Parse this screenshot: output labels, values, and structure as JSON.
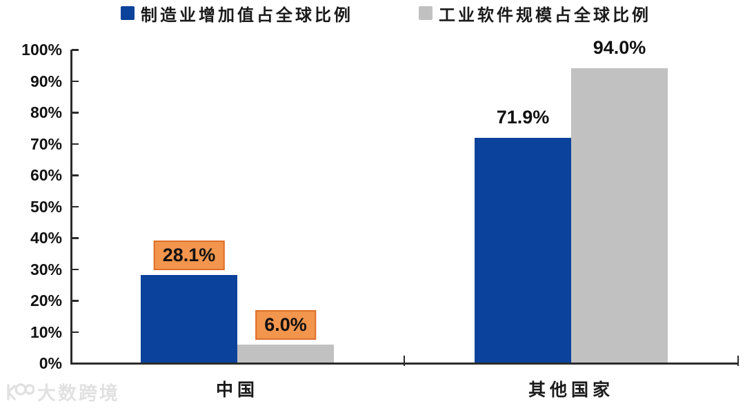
{
  "legend": {
    "items": [
      {
        "label": "制造业增加值占全球比例",
        "color": "#0B429B"
      },
      {
        "label": "工业软件规模占全球比例",
        "color": "#C1C1C1"
      }
    ]
  },
  "chart_data": {
    "type": "bar",
    "title": "",
    "categories": [
      "中国",
      "其他国家"
    ],
    "series": [
      {
        "name": "制造业增加值占全球比例",
        "color": "#0B429B",
        "values": [
          28.1,
          71.9
        ],
        "labels": [
          "28.1%",
          "71.9%"
        ]
      },
      {
        "name": "工业软件规模占全球比例",
        "color": "#C1C1C1",
        "values": [
          6.0,
          94.0
        ],
        "labels": [
          "6.0%",
          "94.0%"
        ]
      }
    ],
    "value_label_boxed_per_category": [
      true,
      false
    ],
    "value_label_box": {
      "fill": "#F2954D",
      "border": "#DD6F28",
      "text_color": "#111111"
    },
    "y_ticks": [
      "0%",
      "10%",
      "20%",
      "30%",
      "40%",
      "50%",
      "60%",
      "70%",
      "80%",
      "90%",
      "100%"
    ],
    "ylim": [
      0,
      100
    ],
    "grid": false,
    "legend_position": "top",
    "axis_color": "#2B2B2B",
    "xlabel": "",
    "ylabel": ""
  },
  "watermark": {
    "text": "大数跨境"
  }
}
